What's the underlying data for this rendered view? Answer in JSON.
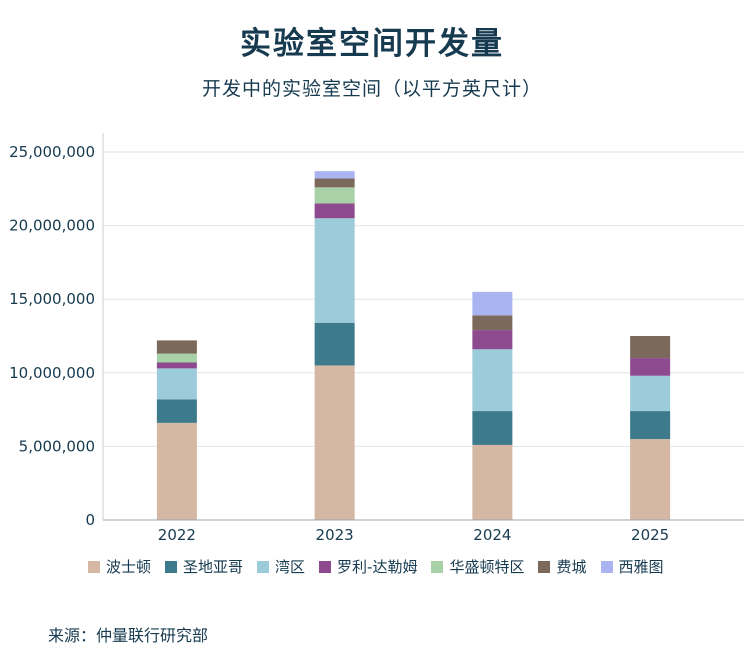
{
  "title": "实验室空间开发量",
  "subtitle": "开发中的实验室空间（以平方英尺计）",
  "source": "来源：仲量联行研究部",
  "chart_data": {
    "type": "bar",
    "stacked": true,
    "title": "实验室空间开发量",
    "subtitle": "开发中的实验室空间（以平方英尺计）",
    "categories": [
      "2022",
      "2023",
      "2024",
      "2025"
    ],
    "yticks": [
      "0",
      "5,000,000",
      "10,000,000",
      "15,000,000",
      "20,000,000",
      "25,000,000"
    ],
    "ylim": [
      0,
      25000000
    ],
    "grid": true,
    "legend_position": "bottom",
    "series": [
      {
        "name": "波士顿",
        "color": "#d4b8a4",
        "values": [
          6600000,
          10500000,
          5100000,
          5500000
        ]
      },
      {
        "name": "圣地亚哥",
        "color": "#3d7a8c",
        "values": [
          1600000,
          2900000,
          2300000,
          1900000
        ]
      },
      {
        "name": "湾区",
        "color": "#9ccbd9",
        "values": [
          2100000,
          7100000,
          4200000,
          2400000
        ]
      },
      {
        "name": "罗利-达勒姆",
        "color": "#8e4a8f",
        "values": [
          400000,
          1000000,
          1300000,
          1200000
        ]
      },
      {
        "name": "华盛顿特区",
        "color": "#a8d1a8",
        "values": [
          600000,
          1100000,
          0,
          0
        ]
      },
      {
        "name": "费城",
        "color": "#7b6a5c",
        "values": [
          900000,
          600000,
          1000000,
          1500000
        ]
      },
      {
        "name": "西雅图",
        "color": "#aab4f0",
        "values": [
          0,
          500000,
          1600000,
          0
        ]
      }
    ]
  }
}
